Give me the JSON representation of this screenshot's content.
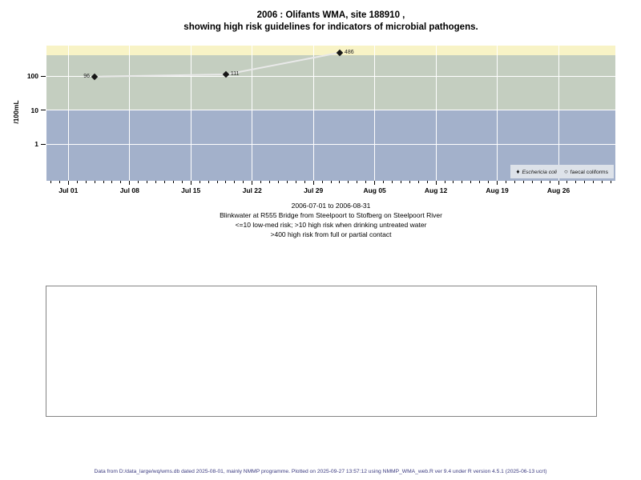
{
  "title": {
    "lines": [
      "2006 : Olifants WMA, site 188910 ,",
      "showing high risk guidelines for indicators of microbial pathogens."
    ]
  },
  "chart_data": {
    "type": "scatter",
    "title": "2006 : Olifants WMA, site 188910 , showing high risk guidelines for indicators of microbial pathogens.",
    "ylabel": "/100mL",
    "xlabel": "",
    "y_scale": "log",
    "y_range": [
      0.083,
      784
    ],
    "x_range_days": [
      -2.5,
      62.5
    ],
    "grid": true,
    "grid_color": "#ffffff",
    "line_color": "#e9e9e9",
    "marker_color": "#161616",
    "x_ticks": [
      {
        "label": "Jul 01",
        "day": 0
      },
      {
        "label": "Jul 08",
        "day": 7
      },
      {
        "label": "Jul 15",
        "day": 14
      },
      {
        "label": "Jul 22",
        "day": 21
      },
      {
        "label": "Jul 29",
        "day": 28
      },
      {
        "label": "Aug 05",
        "day": 35
      },
      {
        "label": "Aug 12",
        "day": 42
      },
      {
        "label": "Aug 19",
        "day": 49
      },
      {
        "label": "Aug 26",
        "day": 56
      }
    ],
    "y_ticks": [
      {
        "label": "100",
        "value": 100
      },
      {
        "label": "10",
        "value": 10
      },
      {
        "label": "1",
        "value": 1
      }
    ],
    "bands": [
      {
        "name": "above-400-high-risk-contact",
        "from": 400,
        "to": 784,
        "color": "#f8f3c6"
      },
      {
        "name": "10-400-high-risk-drinking",
        "from": 10,
        "to": 400,
        "color": "#c4cec0"
      },
      {
        "name": "below-10-low-med-risk",
        "from": 0.083,
        "to": 10,
        "color": "#a3b1cb"
      }
    ],
    "series": [
      {
        "name": "Eschericia coli",
        "marker": "filled-diamond",
        "points": [
          {
            "day": 3,
            "value": 96,
            "label": "96",
            "label_side": "left"
          },
          {
            "day": 18,
            "value": 111,
            "label": "111",
            "label_side": "right"
          },
          {
            "day": 31,
            "value": 486,
            "label": "486",
            "label_side": "right"
          }
        ]
      },
      {
        "name": "faecal coliforms",
        "marker": "open-circle",
        "points": []
      }
    ],
    "legend_position": "bottom-right-inside"
  },
  "legend": {
    "items": [
      {
        "symbol": "♦",
        "label": "Eschericia coli"
      },
      {
        "symbol": "○",
        "label": "faecal coliforms"
      }
    ]
  },
  "caption": {
    "lines": [
      "2006-07-01 to 2006-08-31",
      "Blinkwater at R555 Bridge from Steelpoort to Stofberg on Steelpoort River",
      "<=10 low-med risk; >10 high risk when drinking untreated water",
      ">400 high risk from full or partial contact"
    ]
  },
  "footer": {
    "text": "Data from D:/data_large/wq/wms.db dated 2025-08-01, mainly NMMP programme. Plotted on 2025-09-27 13:57:12 using NMMP_WMA_web.R ver 9.4 under R version 4.5.1 (2025-06-13 ucrt)"
  }
}
